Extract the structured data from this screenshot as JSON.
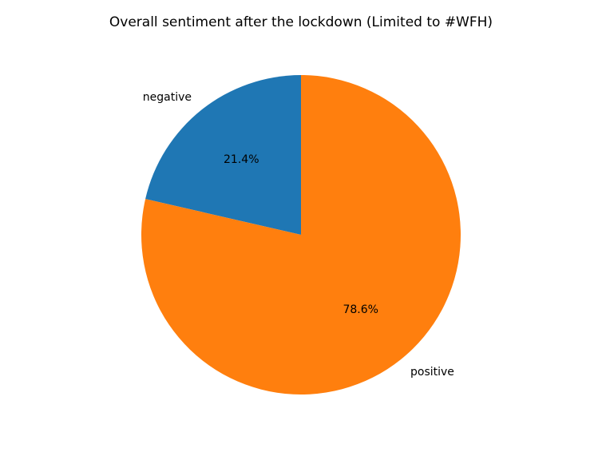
{
  "chart_data": {
    "type": "pie",
    "title": "Overall sentiment after the lockdown (Limited to #WFH)",
    "categories": [
      "negative",
      "positive"
    ],
    "values": [
      21.4,
      78.6
    ],
    "value_labels": [
      "21.4%",
      "78.6%"
    ],
    "colors": [
      "#1f77b4",
      "#ff7f0e"
    ]
  }
}
